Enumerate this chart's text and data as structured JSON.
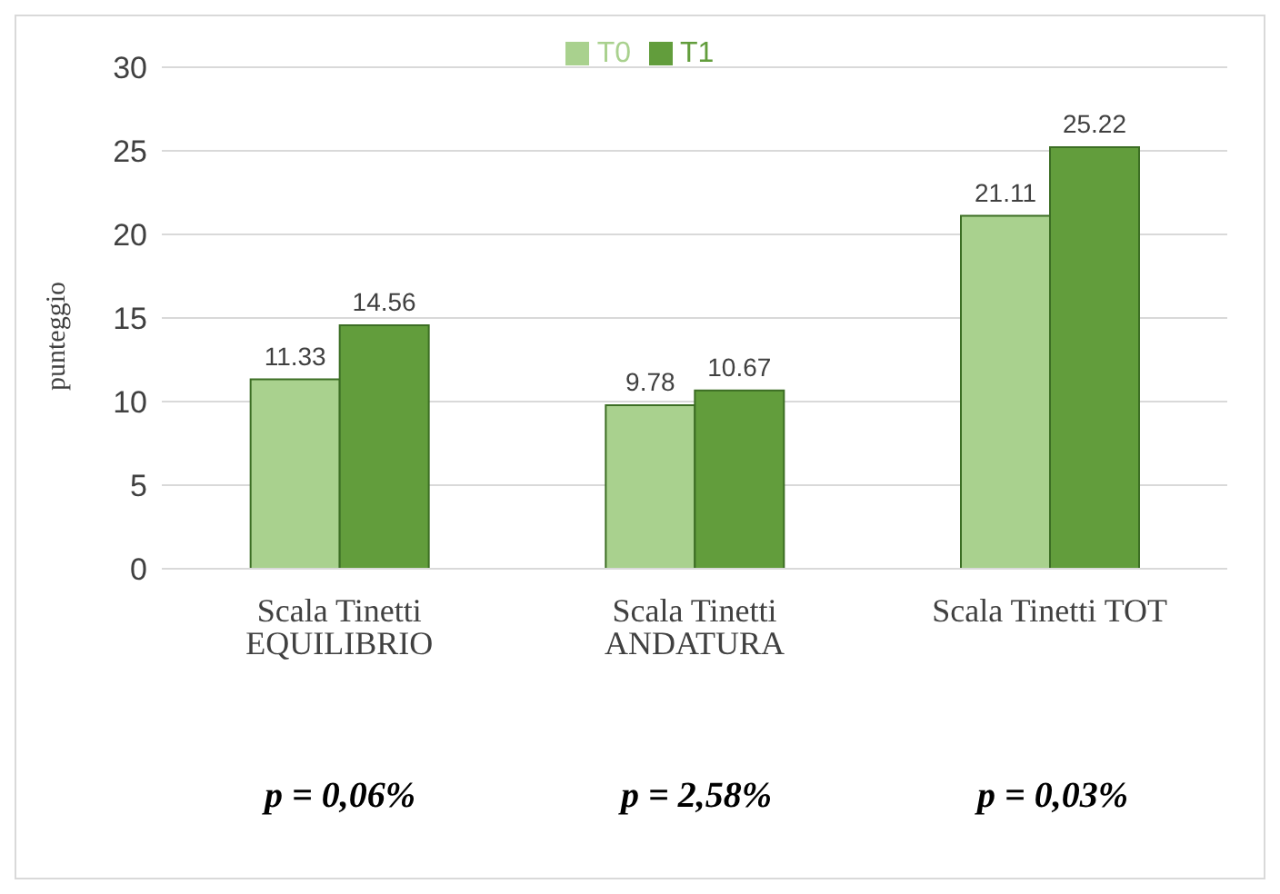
{
  "chart_data": {
    "type": "bar",
    "ylabel": "punteggio",
    "categories": [
      "Scala Tinetti EQUILIBRIO",
      "Scala Tinetti ANDATURA",
      "Scala Tinetti TOT"
    ],
    "series": [
      {
        "name": "T0",
        "color": "#a9d18e",
        "values": [
          11.33,
          9.78,
          21.11
        ]
      },
      {
        "name": "T1",
        "color": "#629d3c",
        "values": [
          14.56,
          10.67,
          25.22
        ]
      }
    ],
    "ylim": [
      0,
      30
    ],
    "yticks": [
      0,
      5,
      10,
      15,
      20,
      25,
      30
    ],
    "grid": "y",
    "legend": "top",
    "data_labels": true,
    "annotations": [
      "p = 0,06%",
      "p = 2,58%",
      "p = 0,03%"
    ]
  }
}
